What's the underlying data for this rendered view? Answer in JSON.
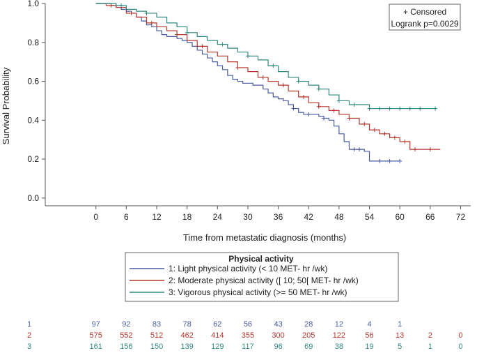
{
  "chart_data": {
    "type": "line",
    "subtype": "kaplan-meier",
    "xlabel": "Time from metastatic diagnosis (months)",
    "ylabel": "Survival Probability",
    "xlim": [
      -10,
      74
    ],
    "ylim": [
      -0.04,
      1.0
    ],
    "xticks": [
      0,
      6,
      12,
      18,
      24,
      30,
      36,
      42,
      48,
      54,
      60,
      66,
      72
    ],
    "yticks": [
      0.0,
      0.2,
      0.4,
      0.6,
      0.8,
      1.0
    ],
    "ytick_labels": [
      "0.0",
      "0.2",
      "0.4",
      "0.6",
      "0.8",
      "1.0"
    ],
    "inset": {
      "censored_label": "+ Censored",
      "logrank_label": "Logrank p=0.0029"
    },
    "legend": {
      "title": "Physical activity",
      "placement": "bottom-center"
    },
    "series": [
      {
        "id": "1",
        "name": "1: Light physical activity (< 10 MET- hr /wk)",
        "color": "#4a5aa0",
        "x": [
          0,
          1,
          2,
          3,
          4,
          5,
          6,
          7,
          8,
          9,
          10,
          11,
          12,
          13,
          14,
          15,
          16,
          17,
          18,
          19,
          20,
          21,
          22,
          23,
          24,
          25,
          26,
          27,
          28,
          29,
          30,
          31,
          32,
          33,
          34,
          35,
          36,
          37,
          38,
          39,
          40,
          41,
          42,
          43,
          44,
          45,
          46,
          47,
          48,
          49,
          50,
          51,
          52,
          53,
          54,
          55,
          56,
          57,
          58,
          59,
          60
        ],
        "y": [
          1.0,
          1.0,
          1.0,
          0.99,
          0.98,
          0.97,
          0.96,
          0.95,
          0.93,
          0.91,
          0.89,
          0.88,
          0.86,
          0.84,
          0.83,
          0.83,
          0.82,
          0.81,
          0.8,
          0.78,
          0.76,
          0.74,
          0.72,
          0.7,
          0.68,
          0.66,
          0.63,
          0.61,
          0.6,
          0.59,
          0.59,
          0.58,
          0.58,
          0.56,
          0.54,
          0.52,
          0.51,
          0.5,
          0.48,
          0.46,
          0.44,
          0.43,
          0.43,
          0.43,
          0.42,
          0.41,
          0.4,
          0.37,
          0.33,
          0.29,
          0.25,
          0.25,
          0.25,
          0.24,
          0.19,
          0.19,
          0.19,
          0.19,
          0.19,
          0.19,
          0.19
        ],
        "censored_x": [
          39,
          42,
          45,
          51,
          52,
          56,
          58,
          60
        ]
      },
      {
        "id": "2",
        "name": "2: Moderate physical activity ([ 10; 50[ MET- hr /wk)",
        "color": "#b5362b",
        "x": [
          0,
          2,
          4,
          6,
          8,
          10,
          12,
          14,
          16,
          18,
          20,
          22,
          24,
          26,
          28,
          30,
          32,
          34,
          36,
          38,
          40,
          42,
          44,
          46,
          48,
          50,
          52,
          54,
          56,
          58,
          60,
          62,
          64,
          66,
          68
        ],
        "y": [
          1.0,
          0.99,
          0.98,
          0.95,
          0.93,
          0.9,
          0.88,
          0.86,
          0.84,
          0.81,
          0.78,
          0.75,
          0.73,
          0.7,
          0.67,
          0.65,
          0.62,
          0.6,
          0.58,
          0.55,
          0.52,
          0.49,
          0.47,
          0.45,
          0.43,
          0.41,
          0.38,
          0.35,
          0.33,
          0.31,
          0.29,
          0.25,
          0.25,
          0.25,
          0.25
        ],
        "censored_x": [
          3,
          7,
          11,
          16,
          21,
          28,
          33,
          37,
          41,
          44,
          47,
          50,
          53,
          55,
          57,
          59,
          61,
          63,
          66
        ]
      },
      {
        "id": "3",
        "name": "3: Vigorous physical activity (>= 50 MET- hr /wk)",
        "color": "#2e8a7e",
        "x": [
          0,
          2,
          4,
          6,
          8,
          10,
          12,
          14,
          16,
          18,
          20,
          22,
          24,
          26,
          28,
          30,
          32,
          34,
          36,
          38,
          40,
          42,
          44,
          46,
          48,
          50,
          52,
          54,
          56,
          58,
          60,
          62,
          64,
          67
        ],
        "y": [
          1.0,
          1.0,
          0.99,
          0.97,
          0.96,
          0.95,
          0.93,
          0.9,
          0.88,
          0.85,
          0.83,
          0.81,
          0.79,
          0.77,
          0.75,
          0.73,
          0.71,
          0.68,
          0.65,
          0.62,
          0.6,
          0.58,
          0.56,
          0.53,
          0.5,
          0.48,
          0.48,
          0.46,
          0.46,
          0.46,
          0.46,
          0.46,
          0.46,
          0.46
        ],
        "censored_x": [
          5,
          10,
          18,
          25,
          30,
          35,
          40,
          44,
          48,
          51,
          54,
          56,
          58,
          60,
          62,
          64,
          67
        ]
      }
    ],
    "risk_table": {
      "rows": [
        {
          "id": "1",
          "color": "#4a5aa0",
          "values": [
            "97",
            "92",
            "83",
            "78",
            "62",
            "56",
            "43",
            "28",
            "12",
            "4",
            "1"
          ]
        },
        {
          "id": "2",
          "color": "#b5362b",
          "values": [
            "575",
            "552",
            "512",
            "462",
            "414",
            "355",
            "300",
            "205",
            "122",
            "56",
            "13",
            "2",
            "0"
          ]
        },
        {
          "id": "3",
          "color": "#2e8a7e",
          "values": [
            "161",
            "156",
            "150",
            "139",
            "129",
            "117",
            "96",
            "69",
            "38",
            "19",
            "5",
            "1",
            "0"
          ]
        }
      ]
    }
  }
}
